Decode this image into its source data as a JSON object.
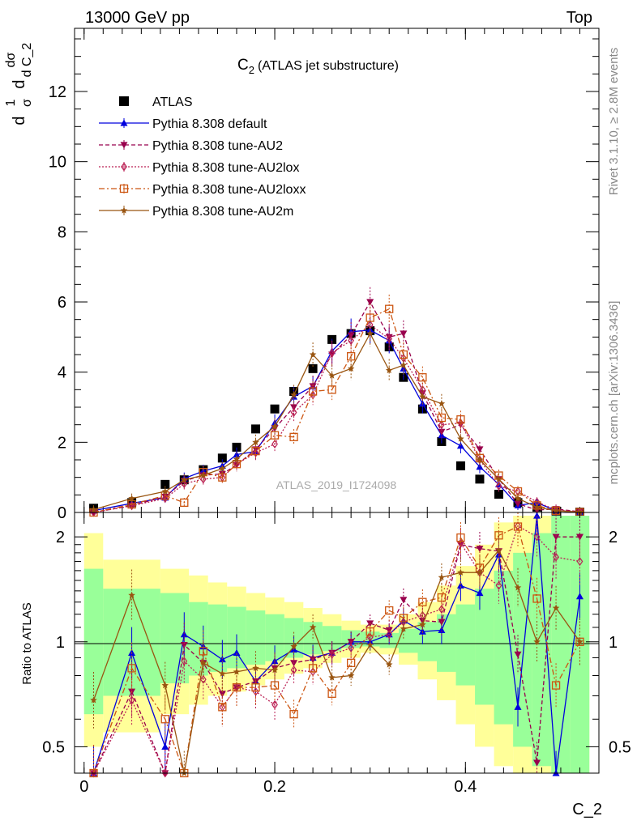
{
  "header": {
    "left": "13000 GeV pp",
    "right": "Top"
  },
  "side_text": {
    "rivet": "Rivet 3.1.10, ≥ 2.8M events",
    "mcplots": "mcplots.cern.ch [arXiv:1306.3436]"
  },
  "watermark": "ATLAS_2019_I1724098",
  "chart_data": [
    {
      "type": "scatter",
      "title": "C",
      "title_sub": "2",
      "title_rest": "(ATLAS jet substructure)",
      "ylabel_parts": [
        "d",
        "1",
        "σ",
        "d",
        "dσ",
        "d C_2"
      ],
      "xlim": [
        -0.01,
        0.54
      ],
      "ylim": [
        0,
        13.8
      ],
      "y_ticks": [
        0,
        2,
        4,
        6,
        8,
        10,
        12
      ],
      "y_tick_labels": [
        "0",
        "2",
        "4",
        "6",
        "8",
        "10",
        "12"
      ],
      "x": [
        0.01,
        0.05,
        0.085,
        0.105,
        0.125,
        0.145,
        0.16,
        0.18,
        0.2,
        0.22,
        0.24,
        0.26,
        0.28,
        0.3,
        0.32,
        0.335,
        0.355,
        0.375,
        0.395,
        0.415,
        0.435,
        0.455,
        0.475,
        0.495,
        0.52
      ],
      "series": [
        {
          "name": "ATLAS",
          "color": "#000000",
          "marker": "square",
          "values": [
            0.12,
            0.28,
            0.8,
            0.93,
            1.22,
            1.55,
            1.86,
            2.38,
            2.95,
            3.45,
            4.1,
            4.93,
            5.1,
            5.18,
            4.72,
            3.85,
            2.95,
            2.02,
            1.33,
            0.95,
            0.52,
            0.28,
            0.15,
            0.04,
            0.01
          ]
        },
        {
          "name": "Pythia 8.308 default",
          "color": "#0000dd",
          "marker": "triangle-up",
          "values": [
            0.05,
            0.26,
            0.42,
            0.97,
            1.18,
            1.33,
            1.65,
            1.74,
            2.55,
            3.3,
            3.6,
            4.6,
            5.15,
            5.2,
            4.9,
            4.1,
            3.1,
            2.2,
            1.9,
            1.3,
            0.8,
            0.2,
            0.28,
            0.05,
            0.01
          ]
        },
        {
          "name": "Pythia 8.308 tune-AU2",
          "color": "#99004d",
          "marker": "triangle-down",
          "values": [
            0.0,
            0.2,
            0.45,
            0.9,
            1.06,
            1.1,
            1.35,
            1.8,
            2.4,
            3.0,
            3.6,
            4.5,
            5.05,
            6.0,
            5.0,
            5.1,
            3.4,
            2.3,
            2.5,
            1.8,
            0.95,
            0.25,
            0.07,
            0.1,
            0.02
          ]
        },
        {
          "name": "Pythia 8.308 tune-AU2lox",
          "color": "#bb2255",
          "marker": "diamond",
          "values": [
            0.0,
            0.19,
            0.4,
            0.82,
            0.95,
            1.0,
            1.38,
            1.7,
            1.95,
            2.85,
            3.35,
            4.55,
            4.9,
            5.35,
            4.95,
            4.4,
            3.5,
            2.5,
            2.55,
            1.5,
            0.75,
            0.6,
            0.3,
            0.07,
            0.02
          ]
        },
        {
          "name": "Pythia 8.308 tune-AU2loxx",
          "color": "#cc5511",
          "marker": "square-open",
          "values": [
            0.0,
            0.23,
            0.48,
            0.28,
            1.15,
            1.0,
            1.38,
            1.75,
            2.2,
            2.15,
            3.45,
            3.5,
            4.45,
            5.55,
            5.8,
            4.5,
            3.85,
            2.7,
            2.65,
            1.55,
            1.05,
            0.6,
            0.2,
            0.05,
            0.01
          ]
        },
        {
          "name": "Pythia 8.308 tune-AU2m",
          "color": "#995511",
          "marker": "star",
          "values": [
            0.08,
            0.4,
            0.6,
            0.93,
            1.06,
            1.25,
            1.52,
            2.0,
            2.45,
            3.35,
            4.5,
            3.9,
            4.1,
            5.1,
            4.05,
            4.2,
            3.3,
            3.1,
            2.1,
            1.5,
            0.95,
            0.4,
            0.15,
            0.05,
            0.01
          ]
        }
      ],
      "legend_position": "top-left"
    },
    {
      "type": "line",
      "ylabel": "Ratio to ATLAS",
      "xlabel": "C_2",
      "x_ticks": [
        0,
        0.2,
        0.4
      ],
      "x_tick_labels": [
        "0",
        "0.2",
        "0.4"
      ],
      "y_ticks": [
        0.5,
        1,
        2
      ],
      "y_tick_labels": [
        "0.5",
        "1",
        "2"
      ],
      "ylim": [
        0.42,
        2.35
      ],
      "log_scale_y": true,
      "band_edges": [
        0.0,
        0.02,
        0.08,
        0.11,
        0.13,
        0.15,
        0.17,
        0.19,
        0.21,
        0.23,
        0.25,
        0.27,
        0.29,
        0.31,
        0.33,
        0.35,
        0.37,
        0.39,
        0.41,
        0.43,
        0.45,
        0.47,
        0.49,
        0.51,
        0.53
      ],
      "band_inner": [
        [
          0.62,
          1.62
        ],
        [
          0.7,
          1.42
        ],
        [
          0.76,
          1.38
        ],
        [
          0.8,
          1.3
        ],
        [
          0.82,
          1.28
        ],
        [
          0.84,
          1.26
        ],
        [
          0.86,
          1.23
        ],
        [
          0.88,
          1.2
        ],
        [
          0.9,
          1.17
        ],
        [
          0.92,
          1.14
        ],
        [
          0.94,
          1.11
        ],
        [
          0.96,
          1.08
        ],
        [
          0.97,
          1.07
        ],
        [
          0.96,
          1.06
        ],
        [
          0.93,
          1.09
        ],
        [
          0.88,
          1.14
        ],
        [
          0.82,
          1.2
        ],
        [
          0.75,
          1.28
        ],
        [
          0.66,
          1.42
        ],
        [
          0.58,
          1.6
        ],
        [
          0.5,
          1.8
        ],
        [
          0.44,
          2.05
        ],
        [
          0.42,
          2.3
        ],
        [
          0.42,
          2.3
        ]
      ],
      "band_outer": [
        [
          0.5,
          2.05
        ],
        [
          0.55,
          1.72
        ],
        [
          0.62,
          1.62
        ],
        [
          0.66,
          1.55
        ],
        [
          0.7,
          1.48
        ],
        [
          0.72,
          1.44
        ],
        [
          0.75,
          1.38
        ],
        [
          0.78,
          1.34
        ],
        [
          0.81,
          1.3
        ],
        [
          0.84,
          1.25
        ],
        [
          0.87,
          1.2
        ],
        [
          0.9,
          1.15
        ],
        [
          0.93,
          1.12
        ],
        [
          0.92,
          1.12
        ],
        [
          0.86,
          1.2
        ],
        [
          0.78,
          1.3
        ],
        [
          0.68,
          1.45
        ],
        [
          0.58,
          1.65
        ],
        [
          0.5,
          1.9
        ],
        [
          0.44,
          2.2
        ],
        [
          0.42,
          2.3
        ],
        [
          0.42,
          2.3
        ],
        [
          0.42,
          2.3
        ],
        [
          0.42,
          2.1
        ]
      ],
      "series": [
        {
          "name": "Pythia 8.308 default",
          "values": [
            0.42,
            0.93,
            0.5,
            1.05,
            0.97,
            0.89,
            0.93,
            0.77,
            0.88,
            0.95,
            0.9,
            0.93,
            1.0,
            1.0,
            1.05,
            1.15,
            1.07,
            1.08,
            1.45,
            1.38,
            1.78,
            0.65,
            2.3,
            0.42,
            1.35
          ]
        },
        {
          "name": "Pythia 8.308 tune-AU2",
          "values": [
            0.42,
            0.72,
            0.42,
            0.98,
            0.87,
            0.71,
            0.74,
            0.77,
            0.84,
            0.87,
            0.89,
            0.93,
            1.0,
            1.13,
            1.08,
            1.32,
            1.15,
            1.14,
            1.9,
            1.85,
            1.82,
            0.92,
            0.45,
            2.0,
            2.0
          ]
        },
        {
          "name": "Pythia 8.308 tune-AU2lox",
          "values": [
            0.42,
            0.68,
            0.42,
            0.88,
            0.78,
            0.65,
            0.74,
            0.72,
            0.66,
            0.83,
            0.82,
            0.92,
            0.96,
            1.03,
            1.05,
            1.14,
            1.19,
            1.24,
            1.92,
            1.58,
            1.45,
            2.15,
            2.0,
            1.75,
            1.7
          ]
        },
        {
          "name": "Pythia 8.308 tune-AU2loxx",
          "values": [
            0.42,
            0.84,
            0.6,
            0.3,
            0.94,
            0.65,
            0.74,
            0.74,
            0.75,
            0.62,
            0.84,
            0.71,
            0.87,
            1.07,
            1.23,
            1.17,
            1.3,
            1.34,
            1.99,
            1.63,
            2.02,
            2.14,
            1.33,
            0.75,
            1.0
          ]
        },
        {
          "name": "Pythia 8.308 tune-AU2m",
          "values": [
            0.68,
            1.36,
            0.75,
            0.42,
            0.87,
            0.81,
            0.82,
            0.84,
            0.83,
            0.97,
            1.1,
            0.79,
            0.8,
            0.98,
            0.86,
            1.09,
            1.12,
            1.53,
            1.58,
            1.58,
            1.83,
            1.43,
            1.0,
            1.25,
            1.0
          ]
        }
      ]
    }
  ]
}
